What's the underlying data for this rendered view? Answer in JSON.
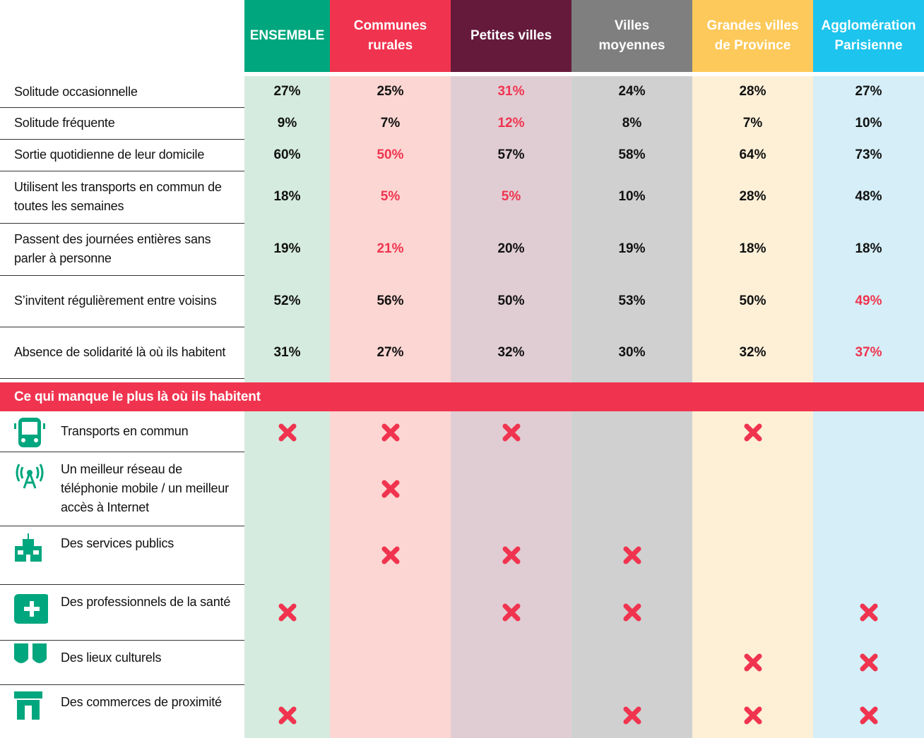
{
  "header": {
    "columns": [
      {
        "label": "ENSEMBLE",
        "color": "#00a67e",
        "bg": "#d5ebdf",
        "text": "#ffffff"
      },
      {
        "label": "Communes rurales",
        "color": "#f0344f",
        "bg": "#fcd6d2",
        "text": "#ffffff"
      },
      {
        "label": "Petites villes",
        "color": "#651a3c",
        "bg": "#e0cdd3",
        "text": "#ffffff"
      },
      {
        "label": "Villes moyennes",
        "color": "#7f7f7f",
        "bg": "#d0d0d0",
        "text": "#ffffff"
      },
      {
        "label": "Grandes villes de Province",
        "color": "#fdc95a",
        "bg": "#fdf0d7",
        "text": "#ffffff"
      },
      {
        "label": "Agglomération Parisienne",
        "color": "#1dc4ee",
        "bg": "#d5eef7",
        "text": "#ffffff"
      }
    ]
  },
  "highlight_color": "#f0344f",
  "table": {
    "rows": [
      {
        "label": "Solitude occasionnelle",
        "cells": [
          "27%",
          "25%",
          "31%",
          "24%",
          "28%",
          "27%"
        ],
        "highlight": [
          2
        ]
      },
      {
        "label": "Solitude fréquente",
        "cells": [
          "9%",
          "7%",
          "12%",
          "8%",
          "7%",
          "10%"
        ],
        "highlight": [
          2
        ]
      },
      {
        "label": "Sortie quotidienne de leur domicile",
        "cells": [
          "60%",
          "50%",
          "57%",
          "58%",
          "64%",
          "73%"
        ],
        "highlight": [
          1
        ]
      },
      {
        "label": "Utilisent les transports en commun de toutes les semaines",
        "cells": [
          "18%",
          "5%",
          "5%",
          "10%",
          "28%",
          "48%"
        ],
        "highlight": [
          1,
          2
        ]
      },
      {
        "label": "Passent des journées entières sans parler à personne",
        "cells": [
          "19%",
          "21%",
          "20%",
          "19%",
          "18%",
          "18%"
        ],
        "highlight": [
          1
        ]
      },
      {
        "label": "S’invitent régulièrement entre voisins",
        "cells": [
          "52%",
          "56%",
          "50%",
          "53%",
          "50%",
          "49%"
        ],
        "highlight": [
          5
        ]
      },
      {
        "label": "Absence de solidarité là où ils habitent",
        "cells": [
          "31%",
          "27%",
          "32%",
          "30%",
          "32%",
          "37%"
        ],
        "highlight": [
          5
        ]
      }
    ]
  },
  "section": {
    "title": "Ce qui manque le plus là où ils habitent",
    "rows": [
      {
        "label": "Transports en commun",
        "marks": [
          true,
          true,
          true,
          false,
          true,
          false
        ]
      },
      {
        "label": "Un meilleur réseau de téléphonie mobile / un meilleur accès à Internet",
        "marks": [
          false,
          true,
          false,
          false,
          false,
          false
        ]
      },
      {
        "label": "Des services publics",
        "marks": [
          false,
          true,
          true,
          true,
          false,
          false
        ]
      },
      {
        "label": "Des professionnels de la santé",
        "marks": [
          true,
          false,
          true,
          true,
          false,
          true
        ]
      },
      {
        "label": "Des lieux culturels",
        "marks": [
          false,
          false,
          false,
          false,
          true,
          true
        ]
      },
      {
        "label": "Des commerces de proximité",
        "marks": [
          true,
          false,
          false,
          true,
          true,
          true
        ]
      }
    ]
  }
}
